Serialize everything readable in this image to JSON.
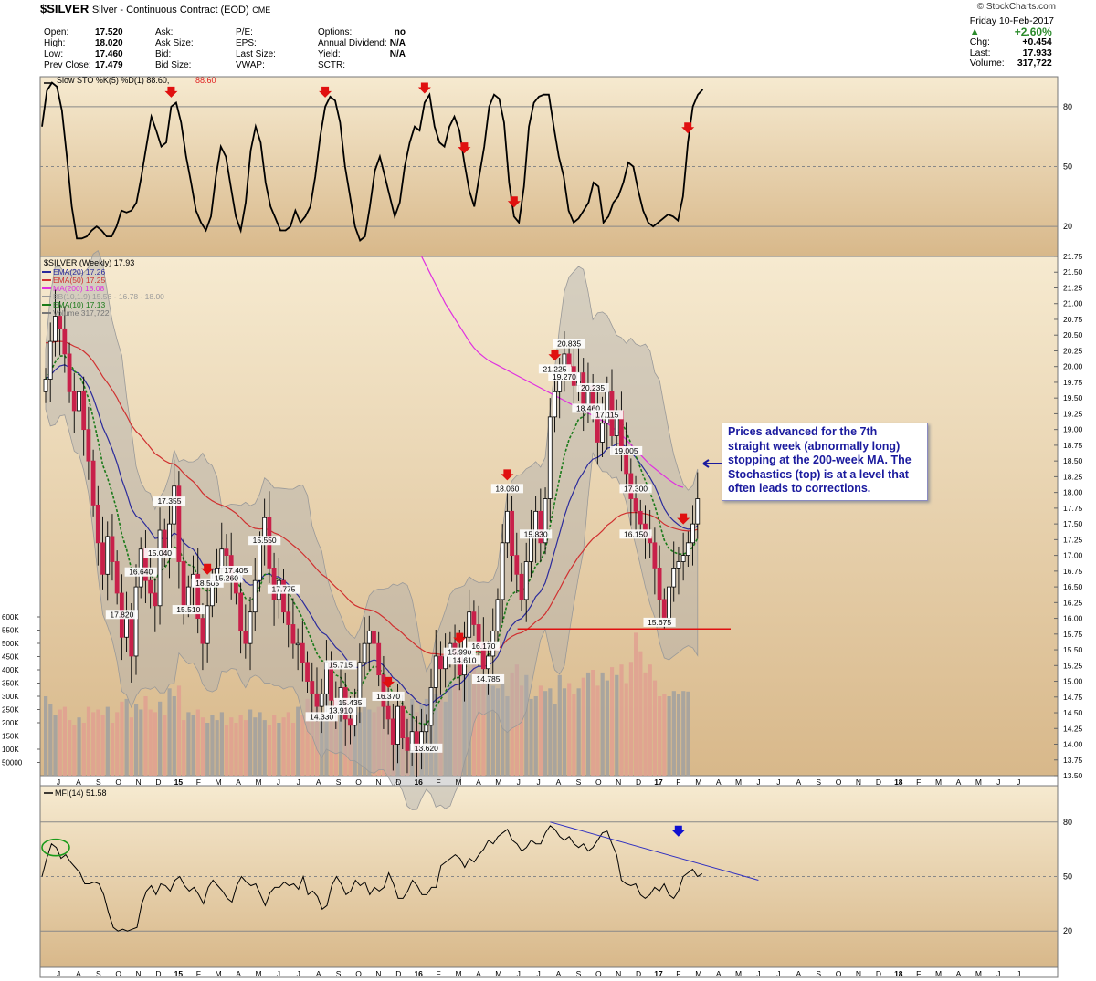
{
  "header": {
    "symbol": "$SILVER",
    "description": "Silver - Continuous Contract (EOD)",
    "exchange": "CME",
    "credit": "© StockCharts.com",
    "quote_col1": [
      {
        "label": "Open:",
        "value": "17.520"
      },
      {
        "label": "High:",
        "value": "18.020"
      },
      {
        "label": "Low:",
        "value": "17.460"
      },
      {
        "label": "Prev Close:",
        "value": "17.479"
      }
    ],
    "quote_col2": [
      "Ask:",
      "Ask Size:",
      "Bid:",
      "Bid Size:"
    ],
    "quote_col3": [
      "P/E:",
      "EPS:",
      "Last Size:",
      "VWAP:"
    ],
    "quote_col4": [
      {
        "label": "Options:",
        "value": "no"
      },
      {
        "label": "Annual Dividend:",
        "value": "N/A"
      },
      {
        "label": "Yield:",
        "value": "N/A"
      },
      {
        "label": "SCTR:",
        "value": ""
      }
    ],
    "date": "Friday  10-Feb-2017",
    "change_pct": "+2.60%",
    "chg_label": "Chg:",
    "chg_value": "+0.454",
    "last_label": "Last:",
    "last_value": "17.933",
    "volume_label": "Volume:",
    "volume_value": "317,722",
    "up_color": "#2a8a2a"
  },
  "annotation": "Prices advanced for the 7th straight week (abnormally long) stopping at the 200-week MA. The Stochastics (top) is at a level that often leads to corrections.",
  "chart_data": [
    {
      "type": "line",
      "panel": "stochastic",
      "legend": [
        {
          "text": "Slow STO %K(5) %D(1) 88.60,",
          "color": "#000000"
        },
        {
          "text": "88.60",
          "color": "#e02020"
        }
      ],
      "y_ticks": [
        20,
        50,
        80
      ],
      "ylim": [
        5,
        95
      ],
      "values": [
        70,
        88,
        92,
        90,
        78,
        55,
        30,
        14,
        14,
        15,
        18,
        20,
        18,
        15,
        15,
        20,
        28,
        27,
        28,
        32,
        45,
        60,
        75,
        68,
        60,
        62,
        80,
        82,
        72,
        55,
        42,
        28,
        22,
        18,
        25,
        45,
        60,
        55,
        40,
        25,
        18,
        32,
        58,
        70,
        62,
        42,
        30,
        24,
        18,
        18,
        20,
        28,
        22,
        25,
        30,
        45,
        65,
        80,
        85,
        83,
        72,
        50,
        35,
        20,
        13,
        15,
        30,
        48,
        55,
        45,
        35,
        25,
        32,
        50,
        62,
        70,
        68,
        82,
        86,
        70,
        62,
        60,
        70,
        75,
        68,
        52,
        38,
        30,
        45,
        60,
        80,
        86,
        84,
        72,
        42,
        25,
        22,
        40,
        70,
        82,
        85,
        86,
        86,
        70,
        55,
        45,
        28,
        22,
        24,
        28,
        32,
        42,
        40,
        22,
        25,
        32,
        35,
        42,
        52,
        50,
        38,
        28,
        22,
        20,
        22,
        24,
        26,
        25,
        23,
        35,
        62,
        80,
        86,
        88.6
      ],
      "arrow_indices": [
        26,
        57,
        77,
        85,
        95,
        130
      ]
    },
    {
      "type": "candlestick",
      "panel": "price",
      "title": "$SILVER (Weekly) 17.93",
      "legend": [
        {
          "text": "EMA(20) 17.26",
          "color": "#2b2b9c"
        },
        {
          "text": "EMA(50) 17.25",
          "color": "#d03030"
        },
        {
          "text": "MA(200) 18.08",
          "color": "#e030e0"
        },
        {
          "text": "BB(10,1.9) 15.56 - 16.78 - 18.00",
          "color": "#9a9a9a"
        },
        {
          "text": "EMA(10) 17.13",
          "color": "#1a7a1a"
        },
        {
          "text": "Volume 317,722",
          "color": "#777777"
        }
      ],
      "ylim": [
        13.5,
        21.75
      ],
      "y_ticks": [
        "13.50",
        "13.75",
        "14.00",
        "14.25",
        "14.50",
        "14.75",
        "15.00",
        "15.25",
        "15.50",
        "15.75",
        "16.00",
        "16.25",
        "16.50",
        "16.75",
        "17.00",
        "17.25",
        "17.50",
        "17.75",
        "18.00",
        "18.25",
        "18.50",
        "18.75",
        "19.00",
        "19.25",
        "19.50",
        "19.75",
        "20.00",
        "20.25",
        "20.50",
        "20.75",
        "21.00",
        "21.25",
        "21.50",
        "21.75"
      ],
      "close": [
        19.8,
        20.4,
        20.8,
        20.6,
        20.2,
        19.6,
        19.3,
        19.6,
        19.0,
        18.5,
        17.8,
        17.2,
        16.7,
        17.3,
        16.9,
        16.4,
        15.7,
        16.0,
        15.4,
        16.5,
        17.1,
        16.6,
        16.4,
        16.2,
        17.4,
        17.0,
        17.5,
        18.1,
        16.9,
        16.2,
        16.5,
        16.7,
        16.0,
        15.6,
        16.2,
        16.6,
        16.8,
        17.1,
        17.0,
        16.6,
        16.4,
        15.8,
        15.6,
        16.1,
        16.6,
        17.2,
        17.6,
        16.8,
        16.3,
        16.6,
        16.1,
        15.9,
        15.6,
        15.6,
        15.3,
        15.0,
        14.8,
        14.6,
        14.8,
        15.3,
        14.7,
        14.6,
        14.9,
        14.4,
        14.3,
        14.7,
        15.3,
        15.6,
        15.8,
        15.6,
        15.1,
        14.6,
        14.4,
        14.0,
        14.6,
        14.1,
        13.9,
        14.2,
        13.9,
        14.2,
        14.3,
        14.9,
        15.4,
        15.2,
        15.4,
        15.6,
        15.4,
        15.1,
        15.7,
        16.1,
        15.9,
        15.6,
        15.2,
        15.4,
        15.8,
        16.3,
        17.2,
        17.7,
        17.0,
        16.7,
        16.3,
        16.9,
        17.3,
        17.7,
        17.2,
        17.9,
        19.2,
        19.6,
        19.9,
        20.2,
        20.0,
        19.7,
        19.9,
        19.4,
        19.7,
        19.3,
        18.8,
        19.1,
        19.6,
        18.9,
        19.3,
        18.7,
        18.3,
        17.9,
        17.7,
        17.5,
        17.3,
        17.2,
        16.8,
        16.3,
        16.0,
        16.5,
        16.8,
        16.9,
        17.0,
        17.2,
        17.5,
        17.9
      ],
      "labels": [
        {
          "i": 16,
          "v": "17.820",
          "pos": "above"
        },
        {
          "i": 20,
          "v": "16.640",
          "pos": "below"
        },
        {
          "i": 24,
          "v": "15.040",
          "pos": "below"
        },
        {
          "i": 26,
          "v": "17.355",
          "pos": "above"
        },
        {
          "i": 30,
          "v": "15.510",
          "pos": "below"
        },
        {
          "i": 34,
          "v": "18.505",
          "pos": "above"
        },
        {
          "i": 38,
          "v": "15.260",
          "pos": "below"
        },
        {
          "i": 40,
          "v": "17.405",
          "pos": "above"
        },
        {
          "i": 46,
          "v": "15.550",
          "pos": "below"
        },
        {
          "i": 50,
          "v": "17.775",
          "pos": "above"
        },
        {
          "i": 62,
          "v": "15.715",
          "pos": "above"
        },
        {
          "i": 64,
          "v": "15.435",
          "pos": "above"
        },
        {
          "i": 58,
          "v": "14.330",
          "pos": "below"
        },
        {
          "i": 62,
          "v": "13.910",
          "pos": "below"
        },
        {
          "i": 72,
          "v": "16.370",
          "pos": "above"
        },
        {
          "i": 80,
          "v": "13.620",
          "pos": "below"
        },
        {
          "i": 87,
          "v": "15.990",
          "pos": "above"
        },
        {
          "i": 88,
          "v": "14.610",
          "pos": "below"
        },
        {
          "i": 92,
          "v": "16.170",
          "pos": "above"
        },
        {
          "i": 93,
          "v": "14.785",
          "pos": "below"
        },
        {
          "i": 97,
          "v": "18.060",
          "pos": "above"
        },
        {
          "i": 103,
          "v": "15.830",
          "pos": "below"
        },
        {
          "i": 107,
          "v": "21.225",
          "pos": "above"
        },
        {
          "i": 110,
          "v": "20.835",
          "pos": "above"
        },
        {
          "i": 115,
          "v": "20.235",
          "pos": "above"
        },
        {
          "i": 109,
          "v": "19.270",
          "pos": "below"
        },
        {
          "i": 114,
          "v": "18.460",
          "pos": "below"
        },
        {
          "i": 122,
          "v": "19.005",
          "pos": "above"
        },
        {
          "i": 124,
          "v": "17.300",
          "pos": "above"
        },
        {
          "i": 118,
          "v": "17.115",
          "pos": "below"
        },
        {
          "i": 124,
          "v": "16.150",
          "pos": "below"
        },
        {
          "i": 129,
          "v": "15.675",
          "pos": "below"
        }
      ],
      "arrow_indices": [
        34,
        72,
        87,
        97,
        107,
        134
      ],
      "support_level": 15.83,
      "ma200": [
        null,
        null,
        null,
        null,
        null,
        null,
        null,
        null,
        null,
        null,
        null,
        null,
        null,
        null,
        null,
        null,
        null,
        null,
        null,
        null,
        null,
        null,
        null,
        null,
        null,
        null,
        null,
        null,
        null,
        null,
        null,
        null,
        null,
        null,
        null,
        null,
        null,
        null,
        null,
        null,
        null,
        null,
        null,
        null,
        null,
        null,
        null,
        null,
        null,
        null,
        null,
        null,
        null,
        null,
        null,
        null,
        null,
        null,
        null,
        null,
        null,
        null,
        null,
        null,
        null,
        null,
        null,
        null,
        null,
        null,
        null,
        null,
        null,
        null,
        null,
        null,
        null,
        null,
        null,
        21.75,
        21.6,
        21.45,
        21.3,
        21.15,
        21.0,
        20.88,
        20.76,
        20.64,
        20.52,
        20.4,
        20.3,
        20.22,
        20.16,
        20.1,
        20.06,
        20.02,
        19.98,
        19.94,
        19.9,
        19.86,
        19.82,
        19.78,
        19.74,
        19.7,
        19.66,
        19.62,
        19.58,
        19.54,
        19.5,
        19.46,
        19.42,
        19.38,
        19.34,
        19.3,
        19.26,
        19.22,
        19.18,
        19.14,
        19.1,
        19.04,
        18.98,
        18.92,
        18.84,
        18.76,
        18.68,
        18.6,
        18.52,
        18.44,
        18.38,
        18.32,
        18.26,
        18.2,
        18.15,
        18.1,
        18.08
      ]
    },
    {
      "type": "bar",
      "panel": "volume",
      "y_ticks": [
        "50000",
        "100K",
        "150K",
        "200K",
        "250K",
        "300K",
        "350K",
        "400K",
        "450K",
        "500K",
        "550K",
        "600K"
      ],
      "values_k": [
        300,
        270,
        230,
        250,
        260,
        210,
        190,
        220,
        200,
        260,
        240,
        250,
        230,
        260,
        200,
        240,
        280,
        290,
        220,
        270,
        250,
        300,
        250,
        240,
        280,
        230,
        330,
        300,
        340,
        210,
        240,
        230,
        250,
        220,
        200,
        230,
        210,
        240,
        190,
        220,
        200,
        230,
        210,
        250,
        220,
        240,
        210,
        190,
        230,
        200,
        220,
        240,
        200,
        260,
        230,
        290,
        250,
        280,
        230,
        310,
        270,
        240,
        260,
        250,
        230,
        270,
        240,
        290,
        250,
        240,
        260,
        300,
        270,
        250,
        230,
        260,
        220,
        290,
        240,
        270,
        290,
        260,
        310,
        300,
        280,
        360,
        350,
        330,
        400,
        380,
        420,
        390,
        360,
        380,
        340,
        330,
        350,
        300,
        390,
        420,
        340,
        380,
        290,
        300,
        340,
        320,
        330,
        270,
        380,
        330,
        350,
        310,
        330,
        370,
        390,
        400,
        340,
        390,
        360,
        410,
        380,
        420,
        350,
        430,
        540,
        470,
        390,
        420,
        360,
        300,
        310,
        300,
        320,
        310,
        320,
        318
      ],
      "down_color": "#e0a090",
      "up_color": "#a0a0a0"
    },
    {
      "type": "line",
      "panel": "mfi",
      "legend": [
        {
          "text": "MFI(14) 51.58",
          "color": "#000000"
        }
      ],
      "y_ticks": [
        20,
        50,
        80
      ],
      "ylim": [
        0,
        100
      ],
      "values": [
        50,
        60,
        68,
        66,
        60,
        62,
        58,
        55,
        52,
        46,
        46,
        47,
        46,
        40,
        30,
        22,
        20,
        21,
        20,
        21,
        22,
        35,
        42,
        45,
        40,
        46,
        45,
        42,
        48,
        50,
        45,
        42,
        44,
        40,
        35,
        44,
        48,
        45,
        42,
        38,
        36,
        45,
        50,
        47,
        45,
        46,
        40,
        34,
        41,
        44,
        44,
        47,
        45,
        46,
        43,
        50,
        40,
        42,
        39,
        32,
        34,
        45,
        50,
        46,
        40,
        42,
        48,
        45,
        47,
        40,
        44,
        42,
        44,
        52,
        46,
        38,
        38,
        42,
        48,
        45,
        40,
        40,
        44,
        44,
        56,
        58,
        60,
        62,
        60,
        55,
        60,
        58,
        62,
        65,
        70,
        68,
        72,
        74,
        76,
        70,
        68,
        64,
        66,
        70,
        68,
        68,
        74,
        78,
        76,
        72,
        70,
        72,
        68,
        66,
        68,
        64,
        66,
        70,
        74,
        75,
        68,
        62,
        48,
        46,
        45,
        46,
        40,
        38,
        40,
        44,
        42,
        46,
        40,
        38,
        42,
        50,
        52,
        54,
        50,
        51.58
      ],
      "trendline": {
        "from_index": 107,
        "from_value": 80,
        "to_index": 147,
        "to_value": 52
      }
    }
  ],
  "x_axis": {
    "months": [
      "J",
      "A",
      "S",
      "O",
      "N",
      "D",
      "15",
      "F",
      "M",
      "A",
      "M",
      "J",
      "J",
      "A",
      "S",
      "O",
      "N",
      "D",
      "16",
      "F",
      "M",
      "A",
      "M",
      "J",
      "J",
      "A",
      "S",
      "O",
      "N",
      "D",
      "17",
      "F",
      "M",
      "A",
      "M",
      "J",
      "J",
      "A",
      "S",
      "O",
      "N",
      "D",
      "18",
      "F",
      "M",
      "A",
      "M",
      "J",
      "J"
    ],
    "bold": [
      "15",
      "16",
      "17",
      "18"
    ]
  }
}
